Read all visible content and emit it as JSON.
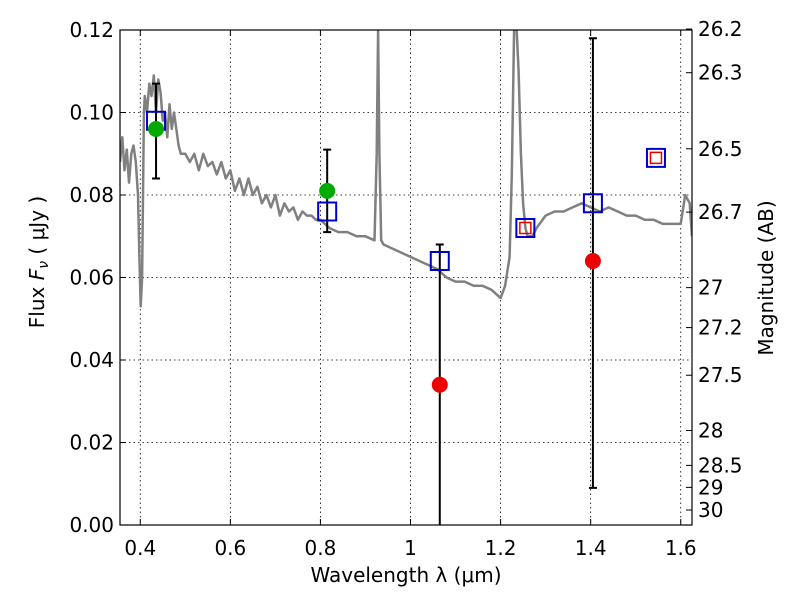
{
  "chart_data": {
    "type": "scatter",
    "xlabel": "Wavelength  λ (μm)",
    "ylabel_prefix": "Flux ",
    "ylabel_symbol": "F",
    "ylabel_sub": "ν",
    "ylabel_suffix": " ( μJy )",
    "y2label": "Magnitude (AB)",
    "xlim": [
      0.355,
      1.625
    ],
    "ylim": [
      0.0,
      0.12
    ],
    "grid": true,
    "x_ticks": [
      0.4,
      0.6,
      0.8,
      1.0,
      1.2,
      1.4,
      1.6
    ],
    "x_tick_labels": [
      "0.4",
      "0.6",
      "0.8",
      "1",
      "1.2",
      "1.4",
      "1.6"
    ],
    "y_ticks": [
      0.0,
      0.02,
      0.04,
      0.06,
      0.08,
      0.1,
      0.12
    ],
    "y_tick_labels": [
      "0.00",
      "0.02",
      "0.04",
      "0.06",
      "0.08",
      "0.10",
      "0.12"
    ],
    "y2_tick_labels": [
      "26.2",
      "26.3",
      "26.5",
      "26.7",
      "27",
      "27.2",
      "27.5",
      "28",
      "28.5",
      "29",
      "30"
    ],
    "colors": {
      "model": "#808080",
      "model_photometry": "#0000cc",
      "detected": "#00aa00",
      "non_detected": "#ee0000",
      "inner_square": "#ee0000",
      "errorbar": "#000000"
    },
    "model_spectrum": {
      "x": [
        0.355,
        0.36,
        0.365,
        0.37,
        0.375,
        0.38,
        0.385,
        0.39,
        0.395,
        0.398,
        0.401,
        0.404,
        0.408,
        0.41,
        0.415,
        0.42,
        0.425,
        0.43,
        0.435,
        0.44,
        0.445,
        0.45,
        0.455,
        0.46,
        0.465,
        0.47,
        0.475,
        0.48,
        0.485,
        0.49,
        0.5,
        0.51,
        0.52,
        0.53,
        0.54,
        0.55,
        0.56,
        0.57,
        0.58,
        0.59,
        0.6,
        0.61,
        0.62,
        0.63,
        0.64,
        0.65,
        0.66,
        0.67,
        0.68,
        0.69,
        0.7,
        0.71,
        0.72,
        0.73,
        0.74,
        0.75,
        0.76,
        0.77,
        0.78,
        0.79,
        0.8,
        0.82,
        0.84,
        0.86,
        0.88,
        0.9,
        0.92,
        0.925,
        0.928,
        0.931,
        0.935,
        0.94,
        0.96,
        0.98,
        1.0,
        1.02,
        1.04,
        1.06,
        1.08,
        1.1,
        1.12,
        1.14,
        1.16,
        1.18,
        1.2,
        1.21,
        1.22,
        1.225,
        1.23,
        1.235,
        1.24,
        1.245,
        1.25,
        1.255,
        1.26,
        1.27,
        1.28,
        1.3,
        1.32,
        1.34,
        1.36,
        1.38,
        1.4,
        1.42,
        1.44,
        1.46,
        1.48,
        1.5,
        1.52,
        1.54,
        1.56,
        1.58,
        1.6,
        1.61,
        1.62,
        1.625
      ],
      "y": [
        0.088,
        0.094,
        0.086,
        0.091,
        0.083,
        0.09,
        0.092,
        0.088,
        0.08,
        0.065,
        0.053,
        0.06,
        0.1,
        0.104,
        0.1,
        0.107,
        0.104,
        0.109,
        0.1,
        0.108,
        0.105,
        0.098,
        0.1,
        0.094,
        0.102,
        0.096,
        0.1,
        0.096,
        0.092,
        0.09,
        0.09,
        0.088,
        0.09,
        0.086,
        0.09,
        0.087,
        0.088,
        0.085,
        0.088,
        0.084,
        0.086,
        0.081,
        0.084,
        0.08,
        0.084,
        0.08,
        0.082,
        0.078,
        0.08,
        0.077,
        0.08,
        0.075,
        0.078,
        0.076,
        0.077,
        0.074,
        0.076,
        0.075,
        0.075,
        0.074,
        0.074,
        0.072,
        0.071,
        0.071,
        0.07,
        0.07,
        0.069,
        0.09,
        0.12,
        0.09,
        0.069,
        0.068,
        0.067,
        0.066,
        0.065,
        0.064,
        0.063,
        0.062,
        0.06,
        0.059,
        0.059,
        0.058,
        0.058,
        0.057,
        0.055,
        0.058,
        0.065,
        0.085,
        0.12,
        0.125,
        0.11,
        0.09,
        0.078,
        0.072,
        0.07,
        0.07,
        0.072,
        0.075,
        0.076,
        0.076,
        0.077,
        0.078,
        0.077,
        0.076,
        0.077,
        0.076,
        0.075,
        0.075,
        0.074,
        0.074,
        0.073,
        0.073,
        0.073,
        0.08,
        0.078,
        0.07
      ]
    },
    "model_photometry": {
      "x": [
        0.435,
        0.815,
        1.065,
        1.255,
        1.405,
        1.545
      ],
      "y": [
        0.098,
        0.076,
        0.064,
        0.072,
        0.078,
        0.089
      ]
    },
    "detections": [
      {
        "x": 0.435,
        "y": 0.096,
        "ylow": 0.084,
        "yhigh": 0.107
      },
      {
        "x": 0.815,
        "y": 0.081,
        "ylow": 0.071,
        "yhigh": 0.091
      }
    ],
    "non_detections": [
      {
        "x": 1.065,
        "y": 0.034,
        "ylow": 0.0,
        "yhigh": 0.068
      },
      {
        "x": 1.405,
        "y": 0.064,
        "ylow": 0.009,
        "yhigh": 0.118
      }
    ],
    "inner_squares": {
      "x": [
        1.255,
        1.545
      ],
      "y": [
        0.072,
        0.089
      ]
    }
  }
}
